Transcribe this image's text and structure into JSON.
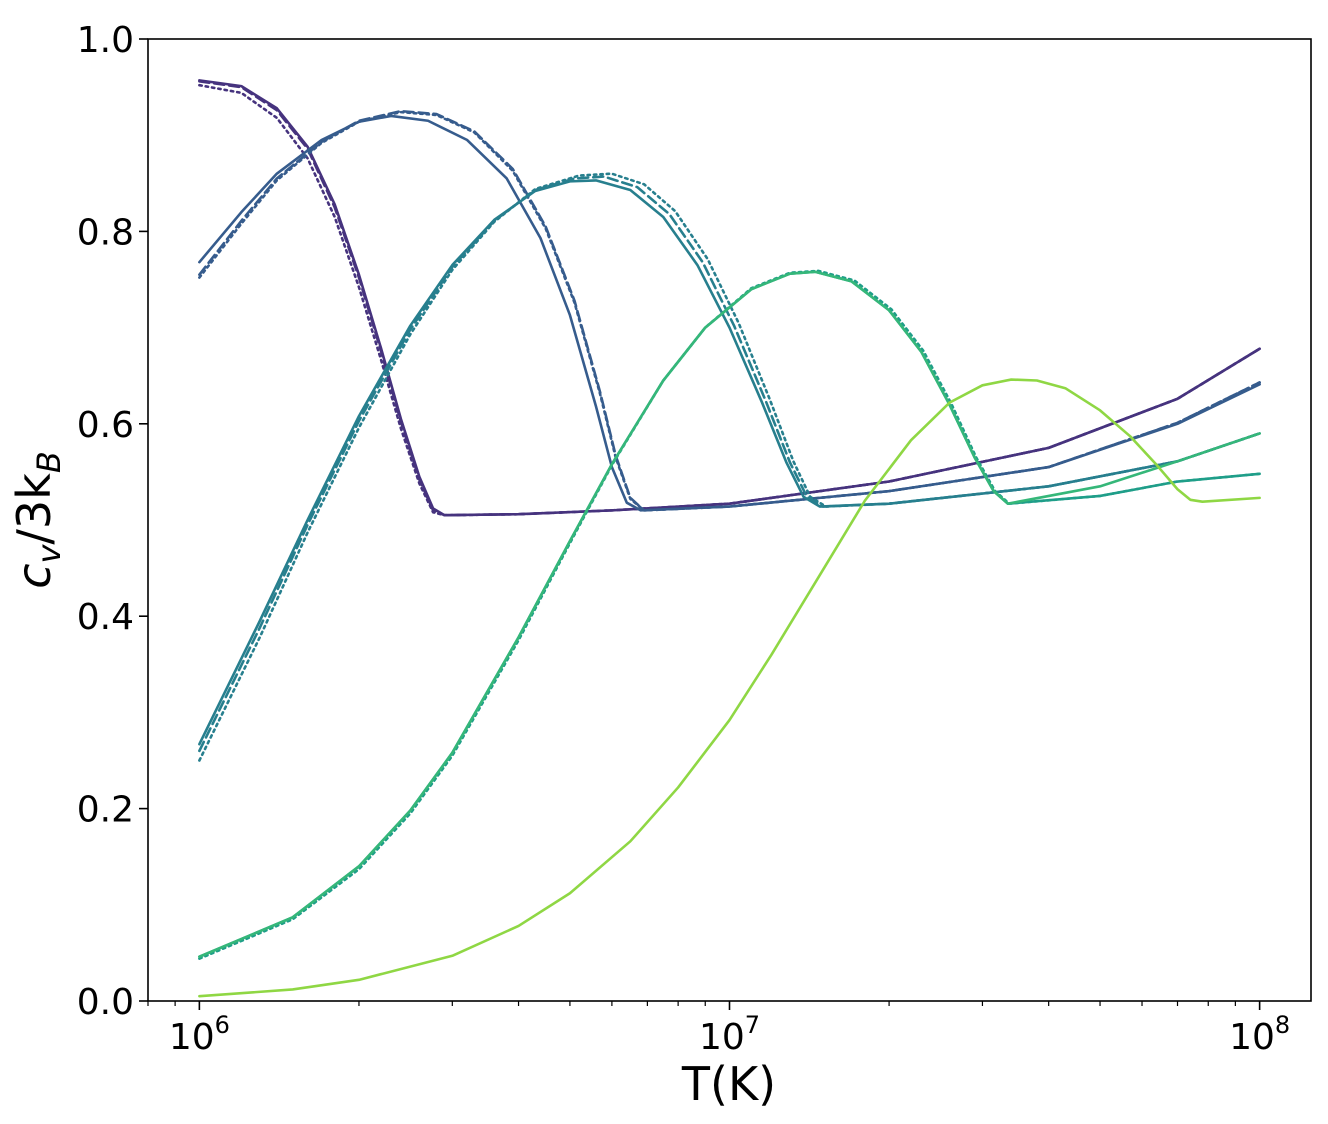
{
  "chart_data": {
    "type": "line",
    "title": "",
    "xlabel": "T(K)",
    "ylabel_parts": {
      "base": "c",
      "sub1": "v",
      "mid": "/3k",
      "sub2": "B"
    },
    "x_scale": "log",
    "xlim": [
      800000,
      125000000
    ],
    "ylim": [
      0.0,
      1.0
    ],
    "grid": false,
    "legend": "none",
    "x_major_ticks": [
      {
        "value": 1000000,
        "base": "10",
        "exp": "6"
      },
      {
        "value": 10000000,
        "base": "10",
        "exp": "7"
      },
      {
        "value": 100000000,
        "base": "10",
        "exp": "8"
      }
    ],
    "y_ticks": [
      {
        "value": 0.0,
        "label": "0.0"
      },
      {
        "value": 0.2,
        "label": "0.2"
      },
      {
        "value": 0.4,
        "label": "0.4"
      },
      {
        "value": 0.6,
        "label": "0.6"
      },
      {
        "value": 0.8,
        "label": "0.8"
      },
      {
        "value": 1.0,
        "label": "1.0"
      }
    ],
    "series": [
      {
        "color": "#46337e",
        "dash": "solid",
        "points": [
          [
            1000000,
            0.957
          ],
          [
            1200000,
            0.951
          ],
          [
            1400000,
            0.928
          ],
          [
            1600000,
            0.888
          ],
          [
            1800000,
            0.828
          ],
          [
            2000000,
            0.755
          ],
          [
            2200000,
            0.679
          ],
          [
            2400000,
            0.605
          ],
          [
            2600000,
            0.545
          ],
          [
            2760000,
            0.512
          ],
          [
            2900000,
            0.505
          ],
          [
            4000000,
            0.506
          ],
          [
            6000000,
            0.51
          ],
          [
            10000000,
            0.517
          ],
          [
            20000000,
            0.54
          ],
          [
            40000000,
            0.575
          ],
          [
            70000000,
            0.626
          ],
          [
            100000000,
            0.678
          ]
        ]
      },
      {
        "color": "#46337e",
        "dash": "dashed",
        "points": [
          [
            1000000,
            0.956
          ],
          [
            1200000,
            0.95
          ],
          [
            1400000,
            0.926
          ],
          [
            1600000,
            0.886
          ],
          [
            1800000,
            0.825
          ],
          [
            2000000,
            0.752
          ],
          [
            2200000,
            0.676
          ],
          [
            2400000,
            0.602
          ],
          [
            2600000,
            0.542
          ],
          [
            2760000,
            0.51
          ],
          [
            2900000,
            0.505
          ],
          [
            4000000,
            0.506
          ],
          [
            6000000,
            0.51
          ],
          [
            10000000,
            0.517
          ],
          [
            20000000,
            0.54
          ],
          [
            40000000,
            0.575
          ],
          [
            70000000,
            0.626
          ],
          [
            100000000,
            0.678
          ]
        ]
      },
      {
        "color": "#46337e",
        "dash": "dotted",
        "points": [
          [
            1000000,
            0.952
          ],
          [
            1200000,
            0.944
          ],
          [
            1400000,
            0.918
          ],
          [
            1600000,
            0.876
          ],
          [
            1800000,
            0.815
          ],
          [
            2000000,
            0.742
          ],
          [
            2200000,
            0.667
          ],
          [
            2400000,
            0.595
          ],
          [
            2600000,
            0.538
          ],
          [
            2760000,
            0.508
          ],
          [
            2900000,
            0.505
          ],
          [
            4000000,
            0.506
          ],
          [
            6000000,
            0.51
          ],
          [
            10000000,
            0.517
          ],
          [
            20000000,
            0.54
          ],
          [
            40000000,
            0.575
          ],
          [
            70000000,
            0.626
          ],
          [
            100000000,
            0.678
          ]
        ]
      },
      {
        "color": "#365c8d",
        "dash": "solid",
        "points": [
          [
            1000000,
            0.768
          ],
          [
            1200000,
            0.82
          ],
          [
            1400000,
            0.86
          ],
          [
            1700000,
            0.895
          ],
          [
            2000000,
            0.914
          ],
          [
            2300000,
            0.92
          ],
          [
            2700000,
            0.915
          ],
          [
            3200000,
            0.895
          ],
          [
            3800000,
            0.855
          ],
          [
            4400000,
            0.793
          ],
          [
            5000000,
            0.713
          ],
          [
            5600000,
            0.618
          ],
          [
            6000000,
            0.555
          ],
          [
            6400000,
            0.518
          ],
          [
            6800000,
            0.51
          ],
          [
            10000000,
            0.514
          ],
          [
            20000000,
            0.53
          ],
          [
            40000000,
            0.555
          ],
          [
            70000000,
            0.6
          ],
          [
            100000000,
            0.641
          ]
        ]
      },
      {
        "color": "#365c8d",
        "dash": "dashed",
        "points": [
          [
            1000000,
            0.755
          ],
          [
            1200000,
            0.811
          ],
          [
            1400000,
            0.855
          ],
          [
            1700000,
            0.893
          ],
          [
            2000000,
            0.915
          ],
          [
            2400000,
            0.925
          ],
          [
            2800000,
            0.922
          ],
          [
            3300000,
            0.904
          ],
          [
            3900000,
            0.865
          ],
          [
            4500000,
            0.805
          ],
          [
            5100000,
            0.728
          ],
          [
            5700000,
            0.633
          ],
          [
            6100000,
            0.567
          ],
          [
            6500000,
            0.523
          ],
          [
            6900000,
            0.51
          ],
          [
            10000000,
            0.514
          ],
          [
            20000000,
            0.53
          ],
          [
            40000000,
            0.555
          ],
          [
            70000000,
            0.601
          ],
          [
            100000000,
            0.643
          ]
        ]
      },
      {
        "color": "#365c8d",
        "dash": "dotted",
        "points": [
          [
            1000000,
            0.752
          ],
          [
            1200000,
            0.808
          ],
          [
            1400000,
            0.853
          ],
          [
            1700000,
            0.892
          ],
          [
            2000000,
            0.914
          ],
          [
            2400000,
            0.924
          ],
          [
            2800000,
            0.921
          ],
          [
            3300000,
            0.903
          ],
          [
            3900000,
            0.863
          ],
          [
            4500000,
            0.803
          ],
          [
            5100000,
            0.726
          ],
          [
            5700000,
            0.631
          ],
          [
            6100000,
            0.565
          ],
          [
            6500000,
            0.522
          ],
          [
            6900000,
            0.51
          ],
          [
            10000000,
            0.514
          ],
          [
            20000000,
            0.53
          ],
          [
            40000000,
            0.555
          ],
          [
            70000000,
            0.601
          ],
          [
            100000000,
            0.643
          ]
        ]
      },
      {
        "color": "#277f8e",
        "dash": "solid",
        "points": [
          [
            1000000,
            0.267
          ],
          [
            1300000,
            0.395
          ],
          [
            1600000,
            0.5
          ],
          [
            2000000,
            0.608
          ],
          [
            2500000,
            0.702
          ],
          [
            3000000,
            0.765
          ],
          [
            3600000,
            0.812
          ],
          [
            4300000,
            0.842
          ],
          [
            5000000,
            0.852
          ],
          [
            5600000,
            0.853
          ],
          [
            6500000,
            0.843
          ],
          [
            7500000,
            0.815
          ],
          [
            8700000,
            0.765
          ],
          [
            10000000,
            0.7
          ],
          [
            11500000,
            0.623
          ],
          [
            12800000,
            0.56
          ],
          [
            13800000,
            0.524
          ],
          [
            14800000,
            0.514
          ],
          [
            20000000,
            0.517
          ],
          [
            40000000,
            0.535
          ],
          [
            70000000,
            0.561
          ],
          [
            100000000,
            0.59
          ]
        ]
      },
      {
        "color": "#277f8e",
        "dash": "dashed",
        "points": [
          [
            1000000,
            0.26
          ],
          [
            1300000,
            0.388
          ],
          [
            1600000,
            0.495
          ],
          [
            2000000,
            0.603
          ],
          [
            2500000,
            0.698
          ],
          [
            3000000,
            0.763
          ],
          [
            3600000,
            0.811
          ],
          [
            4300000,
            0.843
          ],
          [
            5100000,
            0.855
          ],
          [
            5800000,
            0.857
          ],
          [
            6700000,
            0.846
          ],
          [
            7700000,
            0.818
          ],
          [
            8900000,
            0.768
          ],
          [
            10200000,
            0.702
          ],
          [
            11700000,
            0.624
          ],
          [
            13000000,
            0.56
          ],
          [
            14000000,
            0.524
          ],
          [
            15000000,
            0.514
          ],
          [
            20000000,
            0.517
          ],
          [
            40000000,
            0.535
          ],
          [
            70000000,
            0.561
          ],
          [
            100000000,
            0.59
          ]
        ]
      },
      {
        "color": "#277f8e",
        "dash": "dotted",
        "points": [
          [
            1000000,
            0.25
          ],
          [
            1300000,
            0.378
          ],
          [
            1600000,
            0.487
          ],
          [
            2000000,
            0.596
          ],
          [
            2500000,
            0.693
          ],
          [
            3000000,
            0.76
          ],
          [
            3600000,
            0.81
          ],
          [
            4300000,
            0.844
          ],
          [
            5200000,
            0.858
          ],
          [
            6000000,
            0.86
          ],
          [
            6900000,
            0.849
          ],
          [
            7900000,
            0.821
          ],
          [
            9100000,
            0.771
          ],
          [
            10400000,
            0.705
          ],
          [
            11900000,
            0.626
          ],
          [
            13200000,
            0.561
          ],
          [
            14200000,
            0.524
          ],
          [
            15200000,
            0.514
          ],
          [
            20000000,
            0.517
          ],
          [
            40000000,
            0.535
          ],
          [
            70000000,
            0.561
          ],
          [
            100000000,
            0.59
          ]
        ]
      },
      {
        "color": "#1f9e89",
        "dash": "solid",
        "points": [
          [
            1000000,
            0.046
          ],
          [
            1500000,
            0.087
          ],
          [
            2000000,
            0.14
          ],
          [
            2500000,
            0.198
          ],
          [
            3000000,
            0.258
          ],
          [
            4000000,
            0.378
          ],
          [
            5000000,
            0.478
          ],
          [
            6000000,
            0.558
          ],
          [
            7500000,
            0.645
          ],
          [
            9000000,
            0.7
          ],
          [
            11000000,
            0.74
          ],
          [
            13000000,
            0.756
          ],
          [
            14500000,
            0.758
          ],
          [
            17000000,
            0.748
          ],
          [
            20000000,
            0.718
          ],
          [
            23000000,
            0.675
          ],
          [
            26000000,
            0.62
          ],
          [
            29000000,
            0.565
          ],
          [
            31500000,
            0.53
          ],
          [
            33500000,
            0.517
          ],
          [
            50000000,
            0.525
          ],
          [
            70000000,
            0.54
          ],
          [
            100000000,
            0.548
          ]
        ]
      },
      {
        "color": "#1f9e89",
        "dash": "dotted",
        "points": [
          [
            1000000,
            0.044
          ],
          [
            1500000,
            0.085
          ],
          [
            2000000,
            0.137
          ],
          [
            2500000,
            0.195
          ],
          [
            3000000,
            0.255
          ],
          [
            4000000,
            0.375
          ],
          [
            5000000,
            0.476
          ],
          [
            6000000,
            0.557
          ],
          [
            7500000,
            0.645
          ],
          [
            9000000,
            0.7
          ],
          [
            11000000,
            0.741
          ],
          [
            13000000,
            0.757
          ],
          [
            14700000,
            0.759
          ],
          [
            17200000,
            0.749
          ],
          [
            20200000,
            0.719
          ],
          [
            23200000,
            0.676
          ],
          [
            26200000,
            0.621
          ],
          [
            29200000,
            0.565
          ],
          [
            31700000,
            0.53
          ],
          [
            33700000,
            0.517
          ],
          [
            50000000,
            0.525
          ],
          [
            70000000,
            0.54
          ],
          [
            100000000,
            0.548
          ]
        ]
      },
      {
        "color": "#35b779",
        "dash": "solid",
        "points": [
          [
            1000000,
            0.046
          ],
          [
            1500000,
            0.087
          ],
          [
            2000000,
            0.14
          ],
          [
            2500000,
            0.198
          ],
          [
            3000000,
            0.258
          ],
          [
            4000000,
            0.378
          ],
          [
            5000000,
            0.478
          ],
          [
            6000000,
            0.558
          ],
          [
            7500000,
            0.645
          ],
          [
            9000000,
            0.7
          ],
          [
            11000000,
            0.74
          ],
          [
            13000000,
            0.756
          ],
          [
            14500000,
            0.758
          ],
          [
            17000000,
            0.748
          ],
          [
            20000000,
            0.718
          ],
          [
            23000000,
            0.675
          ],
          [
            26000000,
            0.62
          ],
          [
            29000000,
            0.565
          ],
          [
            31500000,
            0.53
          ],
          [
            33500000,
            0.517
          ],
          [
            50000000,
            0.535
          ],
          [
            70000000,
            0.561
          ],
          [
            100000000,
            0.59
          ]
        ]
      },
      {
        "color": "#8fd744",
        "dash": "solid",
        "points": [
          [
            1000000,
            0.005
          ],
          [
            1500000,
            0.012
          ],
          [
            2000000,
            0.022
          ],
          [
            3000000,
            0.047
          ],
          [
            4000000,
            0.078
          ],
          [
            5000000,
            0.112
          ],
          [
            6500000,
            0.166
          ],
          [
            8000000,
            0.222
          ],
          [
            10000000,
            0.292
          ],
          [
            12000000,
            0.36
          ],
          [
            15000000,
            0.448
          ],
          [
            18000000,
            0.52
          ],
          [
            22000000,
            0.583
          ],
          [
            26000000,
            0.622
          ],
          [
            30000000,
            0.64
          ],
          [
            34000000,
            0.646
          ],
          [
            38000000,
            0.645
          ],
          [
            43000000,
            0.637
          ],
          [
            50000000,
            0.614
          ],
          [
            57000000,
            0.587
          ],
          [
            64000000,
            0.557
          ],
          [
            70000000,
            0.532
          ],
          [
            74000000,
            0.521
          ],
          [
            78000000,
            0.519
          ],
          [
            100000000,
            0.523
          ]
        ]
      }
    ]
  }
}
